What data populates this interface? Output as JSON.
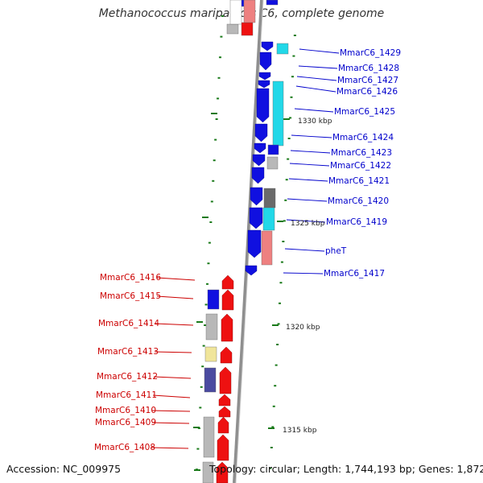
{
  "title": "Methanococcus maripaludis C6, complete genome",
  "accession_label": "Accession: NC_009975",
  "summary_label": "Topology: circular; Length: 1,744,193 bp; Genes: 1,872",
  "colors": {
    "backbone": "#8a8a8a",
    "tick": "#1a7a1a",
    "forward_label": "#0000cc",
    "reverse_label": "#cc0000",
    "forward_gene": "#1010e0",
    "reverse_gene": "#ee1111",
    "cog_cyan": "#22d8e8",
    "cog_gray": "#b8b8b8",
    "cog_darkgray": "#6a6a6a",
    "cog_pink": "#ee8080",
    "cog_yellow": "#f0e59a",
    "cog_navy": "#4a4aa0"
  },
  "kbp_labels": [
    "1330 kbp",
    "1325 kbp",
    "1320 kbp",
    "1315 kbp"
  ],
  "forward_genes": [
    "MmarC6_1429",
    "MmarC6_1428",
    "MmarC6_1427",
    "MmarC6_1426",
    "MmarC6_1425",
    "MmarC6_1424",
    "MmarC6_1423",
    "MmarC6_1422",
    "MmarC6_1421",
    "MmarC6_1420",
    "MmarC6_1419",
    "pheT",
    "MmarC6_1417"
  ],
  "reverse_genes": [
    "MmarC6_1416",
    "MmarC6_1415",
    "MmarC6_1414",
    "MmarC6_1413",
    "MmarC6_1412",
    "MmarC6_1411",
    "MmarC6_1410",
    "MmarC6_1409",
    "MmarC6_1408"
  ]
}
